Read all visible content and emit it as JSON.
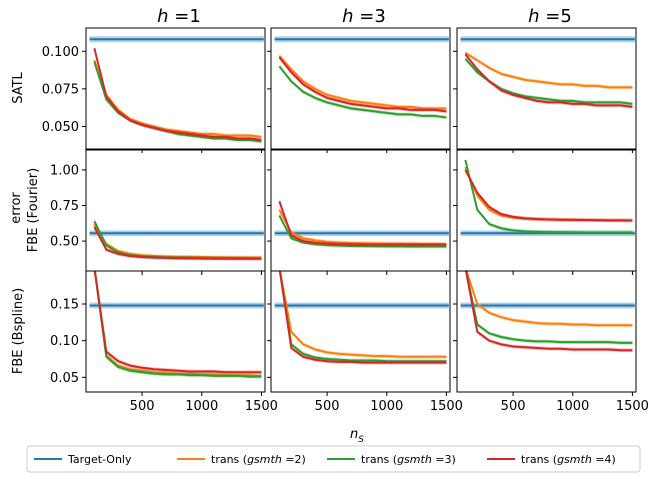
{
  "chart_data": {
    "type": "line",
    "figure_ylabel": "error",
    "xlabel_symbol": "n",
    "xlabel_subscript": "S",
    "column_titles": [
      {
        "symbol": "h",
        "text": " =1"
      },
      {
        "symbol": "h",
        "text": " =3"
      },
      {
        "symbol": "h",
        "text": " =5"
      }
    ],
    "x_ticks": [
      500,
      1000,
      1500
    ],
    "x_tick_labels": [
      "500",
      "1000",
      "1500"
    ],
    "xlim": [
      30,
      1530
    ],
    "rows": [
      {
        "ylabel": "SATL",
        "ylim": [
          0.035,
          0.1155
        ],
        "y_ticks": [
          0.05,
          0.075,
          0.1
        ],
        "y_tick_labels": [
          "0.050",
          "0.075",
          "0.100"
        ]
      },
      {
        "ylabel": "FBE (Fourier)",
        "ylim": [
          0.29,
          1.14
        ],
        "y_ticks": [
          0.5,
          0.75,
          1.0
        ],
        "y_tick_labels": [
          "0.50",
          "0.75",
          "1.00"
        ]
      },
      {
        "ylabel": "FBE (Bspline)",
        "ylim": [
          0.03,
          0.195
        ],
        "y_ticks": [
          0.05,
          0.1,
          0.15
        ],
        "y_tick_labels": [
          "0.05",
          "0.10",
          "0.15"
        ]
      }
    ],
    "legend": {
      "position": "bottom",
      "entries": [
        {
          "name": "Target-Only",
          "color": "#1f77b4",
          "style": "text"
        },
        {
          "name": "trans (",
          "italic": "gsmth",
          "suffix": " =2)",
          "color": "#ff7f0e",
          "style": "mixed"
        },
        {
          "name": "trans (",
          "italic": "gsmth",
          "suffix": " =3)",
          "color": "#2ca02c",
          "style": "mixed"
        },
        {
          "name": "trans (",
          "italic": "gsmth",
          "suffix": " =4)",
          "color": "#d62728",
          "style": "mixed"
        }
      ]
    },
    "colors": {
      "target": "#1f77b4",
      "g2": "#ff7f0e",
      "g3": "#2ca02c",
      "g4": "#d62728"
    },
    "x": [
      100,
      200,
      300,
      400,
      500,
      600,
      700,
      800,
      900,
      1000,
      1100,
      1200,
      1300,
      1400,
      1500
    ],
    "panels": [
      {
        "row": 0,
        "col": 0,
        "target": 0.108,
        "target_band": 0.002,
        "series": {
          "g2": [
            0.094,
            0.071,
            0.061,
            0.055,
            0.052,
            0.05,
            0.048,
            0.047,
            0.046,
            0.045,
            0.045,
            0.044,
            0.044,
            0.044,
            0.043
          ],
          "g3": [
            0.093,
            0.068,
            0.059,
            0.054,
            0.051,
            0.049,
            0.047,
            0.045,
            0.044,
            0.043,
            0.042,
            0.042,
            0.041,
            0.041,
            0.04
          ],
          "g4": [
            0.102,
            0.07,
            0.06,
            0.054,
            0.051,
            0.049,
            0.047,
            0.046,
            0.045,
            0.044,
            0.043,
            0.043,
            0.042,
            0.042,
            0.041
          ]
        }
      },
      {
        "row": 0,
        "col": 1,
        "target": 0.108,
        "target_band": 0.002,
        "series": {
          "g2": [
            0.097,
            0.088,
            0.08,
            0.075,
            0.071,
            0.069,
            0.067,
            0.066,
            0.065,
            0.064,
            0.063,
            0.063,
            0.062,
            0.062,
            0.062
          ],
          "g3": [
            0.09,
            0.08,
            0.073,
            0.069,
            0.066,
            0.064,
            0.062,
            0.061,
            0.06,
            0.059,
            0.058,
            0.058,
            0.057,
            0.057,
            0.056
          ],
          "g4": [
            0.096,
            0.086,
            0.078,
            0.073,
            0.069,
            0.067,
            0.065,
            0.064,
            0.063,
            0.062,
            0.062,
            0.061,
            0.061,
            0.061,
            0.06
          ]
        }
      },
      {
        "row": 0,
        "col": 2,
        "target": 0.108,
        "target_band": 0.002,
        "series": {
          "g2": [
            0.099,
            0.094,
            0.089,
            0.085,
            0.083,
            0.081,
            0.08,
            0.079,
            0.078,
            0.078,
            0.077,
            0.077,
            0.076,
            0.076,
            0.076
          ],
          "g3": [
            0.095,
            0.086,
            0.08,
            0.075,
            0.072,
            0.07,
            0.069,
            0.068,
            0.067,
            0.067,
            0.066,
            0.066,
            0.066,
            0.066,
            0.065
          ],
          "g4": [
            0.098,
            0.088,
            0.08,
            0.074,
            0.071,
            0.069,
            0.067,
            0.066,
            0.066,
            0.065,
            0.065,
            0.064,
            0.064,
            0.064,
            0.063
          ]
        }
      },
      {
        "row": 1,
        "col": 0,
        "target": 0.555,
        "target_band": 0.02,
        "series": {
          "g2": [
            0.62,
            0.48,
            0.43,
            0.41,
            0.4,
            0.395,
            0.392,
            0.39,
            0.39,
            0.388,
            0.387,
            0.386,
            0.386,
            0.385,
            0.385
          ],
          "g3": [
            0.64,
            0.47,
            0.42,
            0.4,
            0.392,
            0.388,
            0.385,
            0.383,
            0.382,
            0.38,
            0.38,
            0.379,
            0.379,
            0.378,
            0.378
          ],
          "g4": [
            0.6,
            0.44,
            0.41,
            0.395,
            0.388,
            0.384,
            0.382,
            0.38,
            0.379,
            0.378,
            0.377,
            0.377,
            0.376,
            0.376,
            0.376
          ]
        }
      },
      {
        "row": 1,
        "col": 1,
        "target": 0.555,
        "target_band": 0.02,
        "series": {
          "g2": [
            0.72,
            0.56,
            0.52,
            0.505,
            0.495,
            0.49,
            0.487,
            0.485,
            0.484,
            0.483,
            0.482,
            0.482,
            0.481,
            0.481,
            0.48
          ],
          "g3": [
            0.68,
            0.52,
            0.49,
            0.478,
            0.472,
            0.468,
            0.466,
            0.465,
            0.464,
            0.463,
            0.463,
            0.462,
            0.462,
            0.462,
            0.462
          ],
          "g4": [
            0.78,
            0.54,
            0.5,
            0.488,
            0.482,
            0.479,
            0.477,
            0.476,
            0.475,
            0.475,
            0.475,
            0.475,
            0.474,
            0.474,
            0.474
          ]
        }
      },
      {
        "row": 1,
        "col": 2,
        "target": 0.555,
        "target_band": 0.02,
        "series": {
          "g2": [
            1.02,
            0.82,
            0.72,
            0.68,
            0.665,
            0.658,
            0.654,
            0.652,
            0.65,
            0.649,
            0.648,
            0.647,
            0.646,
            0.646,
            0.645
          ],
          "g3": [
            1.07,
            0.72,
            0.62,
            0.59,
            0.575,
            0.568,
            0.565,
            0.563,
            0.562,
            0.561,
            0.56,
            0.56,
            0.56,
            0.56,
            0.56
          ],
          "g4": [
            1.0,
            0.84,
            0.74,
            0.69,
            0.67,
            0.66,
            0.655,
            0.652,
            0.65,
            0.649,
            0.648,
            0.647,
            0.646,
            0.646,
            0.645
          ]
        }
      },
      {
        "row": 2,
        "col": 0,
        "target": 0.148,
        "target_band": 0.004,
        "series": {
          "g2": [
            0.2,
            0.08,
            0.066,
            0.061,
            0.059,
            0.057,
            0.056,
            0.055,
            0.055,
            0.054,
            0.054,
            0.053,
            0.053,
            0.053,
            0.052
          ],
          "g3": [
            0.2,
            0.078,
            0.064,
            0.059,
            0.057,
            0.055,
            0.054,
            0.054,
            0.053,
            0.053,
            0.052,
            0.052,
            0.052,
            0.051,
            0.051
          ],
          "g4": [
            0.2,
            0.085,
            0.072,
            0.066,
            0.063,
            0.061,
            0.06,
            0.059,
            0.058,
            0.058,
            0.058,
            0.057,
            0.057,
            0.057,
            0.057
          ]
        }
      },
      {
        "row": 2,
        "col": 1,
        "target": 0.148,
        "target_band": 0.004,
        "series": {
          "g2": [
            0.2,
            0.112,
            0.095,
            0.088,
            0.084,
            0.082,
            0.081,
            0.08,
            0.079,
            0.079,
            0.078,
            0.078,
            0.078,
            0.078,
            0.078
          ],
          "g3": [
            0.2,
            0.095,
            0.082,
            0.077,
            0.075,
            0.074,
            0.073,
            0.073,
            0.073,
            0.072,
            0.072,
            0.072,
            0.072,
            0.072,
            0.072
          ],
          "g4": [
            0.2,
            0.09,
            0.078,
            0.074,
            0.072,
            0.071,
            0.071,
            0.07,
            0.07,
            0.07,
            0.07,
            0.07,
            0.07,
            0.07,
            0.07
          ]
        }
      },
      {
        "row": 2,
        "col": 2,
        "target": 0.148,
        "target_band": 0.004,
        "series": {
          "g2": [
            0.2,
            0.15,
            0.138,
            0.132,
            0.128,
            0.126,
            0.124,
            0.123,
            0.123,
            0.122,
            0.122,
            0.121,
            0.121,
            0.121,
            0.121
          ],
          "g3": [
            0.2,
            0.122,
            0.11,
            0.105,
            0.102,
            0.1,
            0.099,
            0.099,
            0.098,
            0.098,
            0.098,
            0.098,
            0.098,
            0.097,
            0.097
          ],
          "g4": [
            0.2,
            0.112,
            0.1,
            0.095,
            0.092,
            0.091,
            0.09,
            0.089,
            0.089,
            0.088,
            0.088,
            0.088,
            0.088,
            0.087,
            0.087
          ]
        }
      }
    ]
  }
}
